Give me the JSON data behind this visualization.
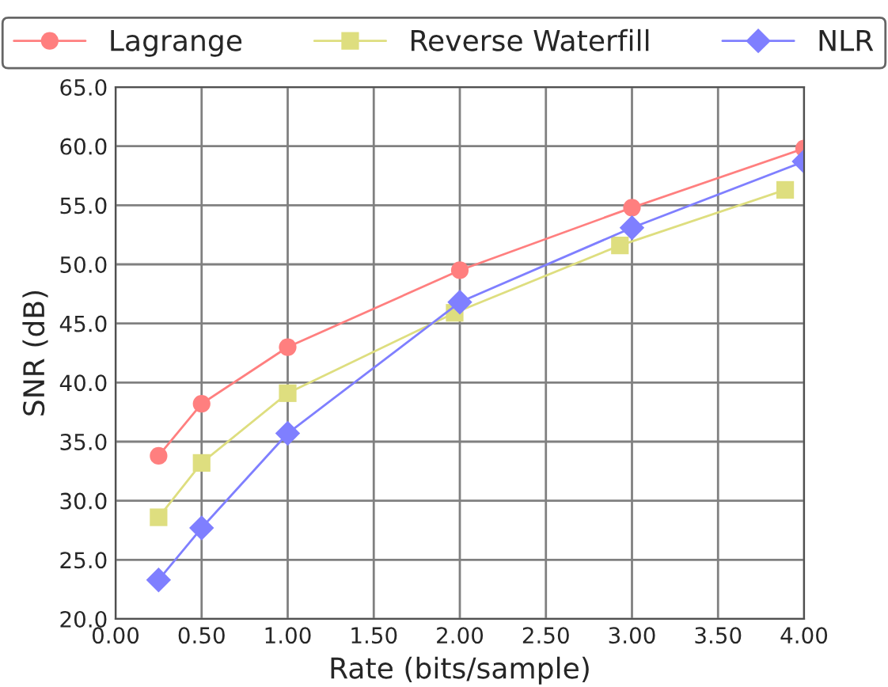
{
  "chart_data": {
    "type": "line",
    "xlabel": "Rate (bits/sample)",
    "ylabel": "SNR (dB)",
    "xlim": [
      0,
      4
    ],
    "ylim": [
      20,
      65
    ],
    "xticks": [
      {
        "value": 0,
        "label": "0.00"
      },
      {
        "value": 0.5,
        "label": "0.50"
      },
      {
        "value": 1,
        "label": "1.00"
      },
      {
        "value": 1.5,
        "label": "1.50"
      },
      {
        "value": 2,
        "label": "2.00"
      },
      {
        "value": 2.5,
        "label": "2.50"
      },
      {
        "value": 3,
        "label": "3.00"
      },
      {
        "value": 3.5,
        "label": "3.50"
      },
      {
        "value": 4,
        "label": "4.00"
      }
    ],
    "yticks": [
      {
        "value": 20,
        "label": "20.0"
      },
      {
        "value": 25,
        "label": "25.0"
      },
      {
        "value": 30,
        "label": "30.0"
      },
      {
        "value": 35,
        "label": "35.0"
      },
      {
        "value": 40,
        "label": "40.0"
      },
      {
        "value": 45,
        "label": "45.0"
      },
      {
        "value": 50,
        "label": "50.0"
      },
      {
        "value": 55,
        "label": "55.0"
      },
      {
        "value": 60,
        "label": "60.0"
      },
      {
        "value": 65,
        "label": "65.0"
      }
    ],
    "grid": true,
    "legend": "top",
    "series": [
      {
        "name": "Lagrange",
        "color": "#ff7f7f",
        "marker": "circle",
        "x": [
          0.25,
          0.5,
          1,
          2,
          3,
          4
        ],
        "values": [
          33.8,
          38.2,
          43.0,
          49.5,
          54.8,
          59.8
        ]
      },
      {
        "name": "Reverse Waterfill",
        "color": "#dede7f",
        "marker": "square",
        "x": [
          0.25,
          0.5,
          1,
          1.97,
          2.93,
          3.89
        ],
        "values": [
          28.6,
          33.2,
          39.1,
          45.9,
          51.6,
          56.3
        ]
      },
      {
        "name": "NLR",
        "color": "#7f7fff",
        "marker": "diamond",
        "x": [
          0.25,
          0.5,
          1,
          2,
          3,
          4
        ],
        "values": [
          23.3,
          27.7,
          35.7,
          46.8,
          53.1,
          58.7
        ]
      }
    ]
  }
}
